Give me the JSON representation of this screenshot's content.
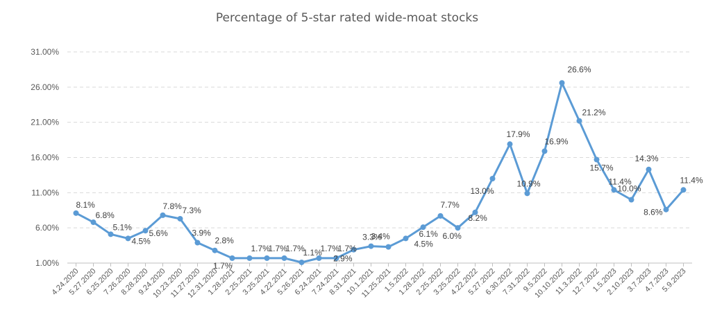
{
  "chart_data": {
    "type": "line",
    "title": "Percentage of 5-star rated wide-moat stocks",
    "xlabel": "",
    "ylabel": "",
    "ylim": [
      1.0,
      31.0
    ],
    "yticks": [
      "1.00%",
      "6.00%",
      "11.00%",
      "16.00%",
      "21.00%",
      "26.00%",
      "31.00%"
    ],
    "grid": true,
    "legend": "none",
    "line_color": "#5B9BD5",
    "categories": [
      "4.24.2020",
      "5.27.2020",
      "6.25.2020",
      "7.26.2020",
      "8.28.2020",
      "9.24.2020",
      "10.23.2020",
      "11.27.2020",
      "12.31.2020",
      "1.28.2021",
      "2.25.2021",
      "3.25.2021",
      "4.22.2021",
      "5.26.2021",
      "6.24.2021",
      "7.24.2021",
      "8.31.2021",
      "10.1.2021",
      "11.25.2021",
      "1.5.2022",
      "1.28.2022",
      "2.25.2022",
      "3.25.2022",
      "4.22.2022",
      "5.27.2022",
      "6.30.2022",
      "7.31.2022",
      "9.5.2022",
      "10.10.2022",
      "11.3.2022",
      "12.7.2022",
      "1.5.2023",
      "2.10.2023",
      "3.7.2023",
      "4.7.2023",
      "5.9.2023"
    ],
    "values": [
      8.1,
      6.8,
      5.1,
      4.5,
      5.6,
      7.8,
      7.3,
      3.9,
      2.8,
      1.7,
      1.7,
      1.7,
      1.7,
      1.1,
      1.7,
      1.7,
      2.9,
      3.4,
      3.3,
      4.5,
      6.1,
      7.7,
      6.0,
      8.2,
      13.0,
      17.9,
      10.9,
      16.9,
      26.6,
      21.2,
      15.7,
      11.4,
      10.0,
      14.3,
      8.6,
      11.4
    ],
    "data_labels": [
      "8.1%",
      "6.8%",
      "5.1%",
      "4.5%",
      "5.6%",
      "7.8%",
      "7.3%",
      "3.9%",
      "2.8%",
      "1.7%",
      "1.7%",
      "1.7%",
      "1.7%",
      "1.1%",
      "1.7%",
      "1.7%",
      "2.9%",
      "3.4%",
      "3.3%",
      "4.5%",
      "6.1%",
      "7.7%",
      "6.0%",
      "8.2%",
      "13.0%",
      "17.9%",
      "10.9%",
      "16.9%",
      "26.6%",
      "21.2%",
      "15.7%",
      "11.4%",
      "10.0%",
      "14.3%",
      "8.6%",
      "11.4%"
    ]
  }
}
